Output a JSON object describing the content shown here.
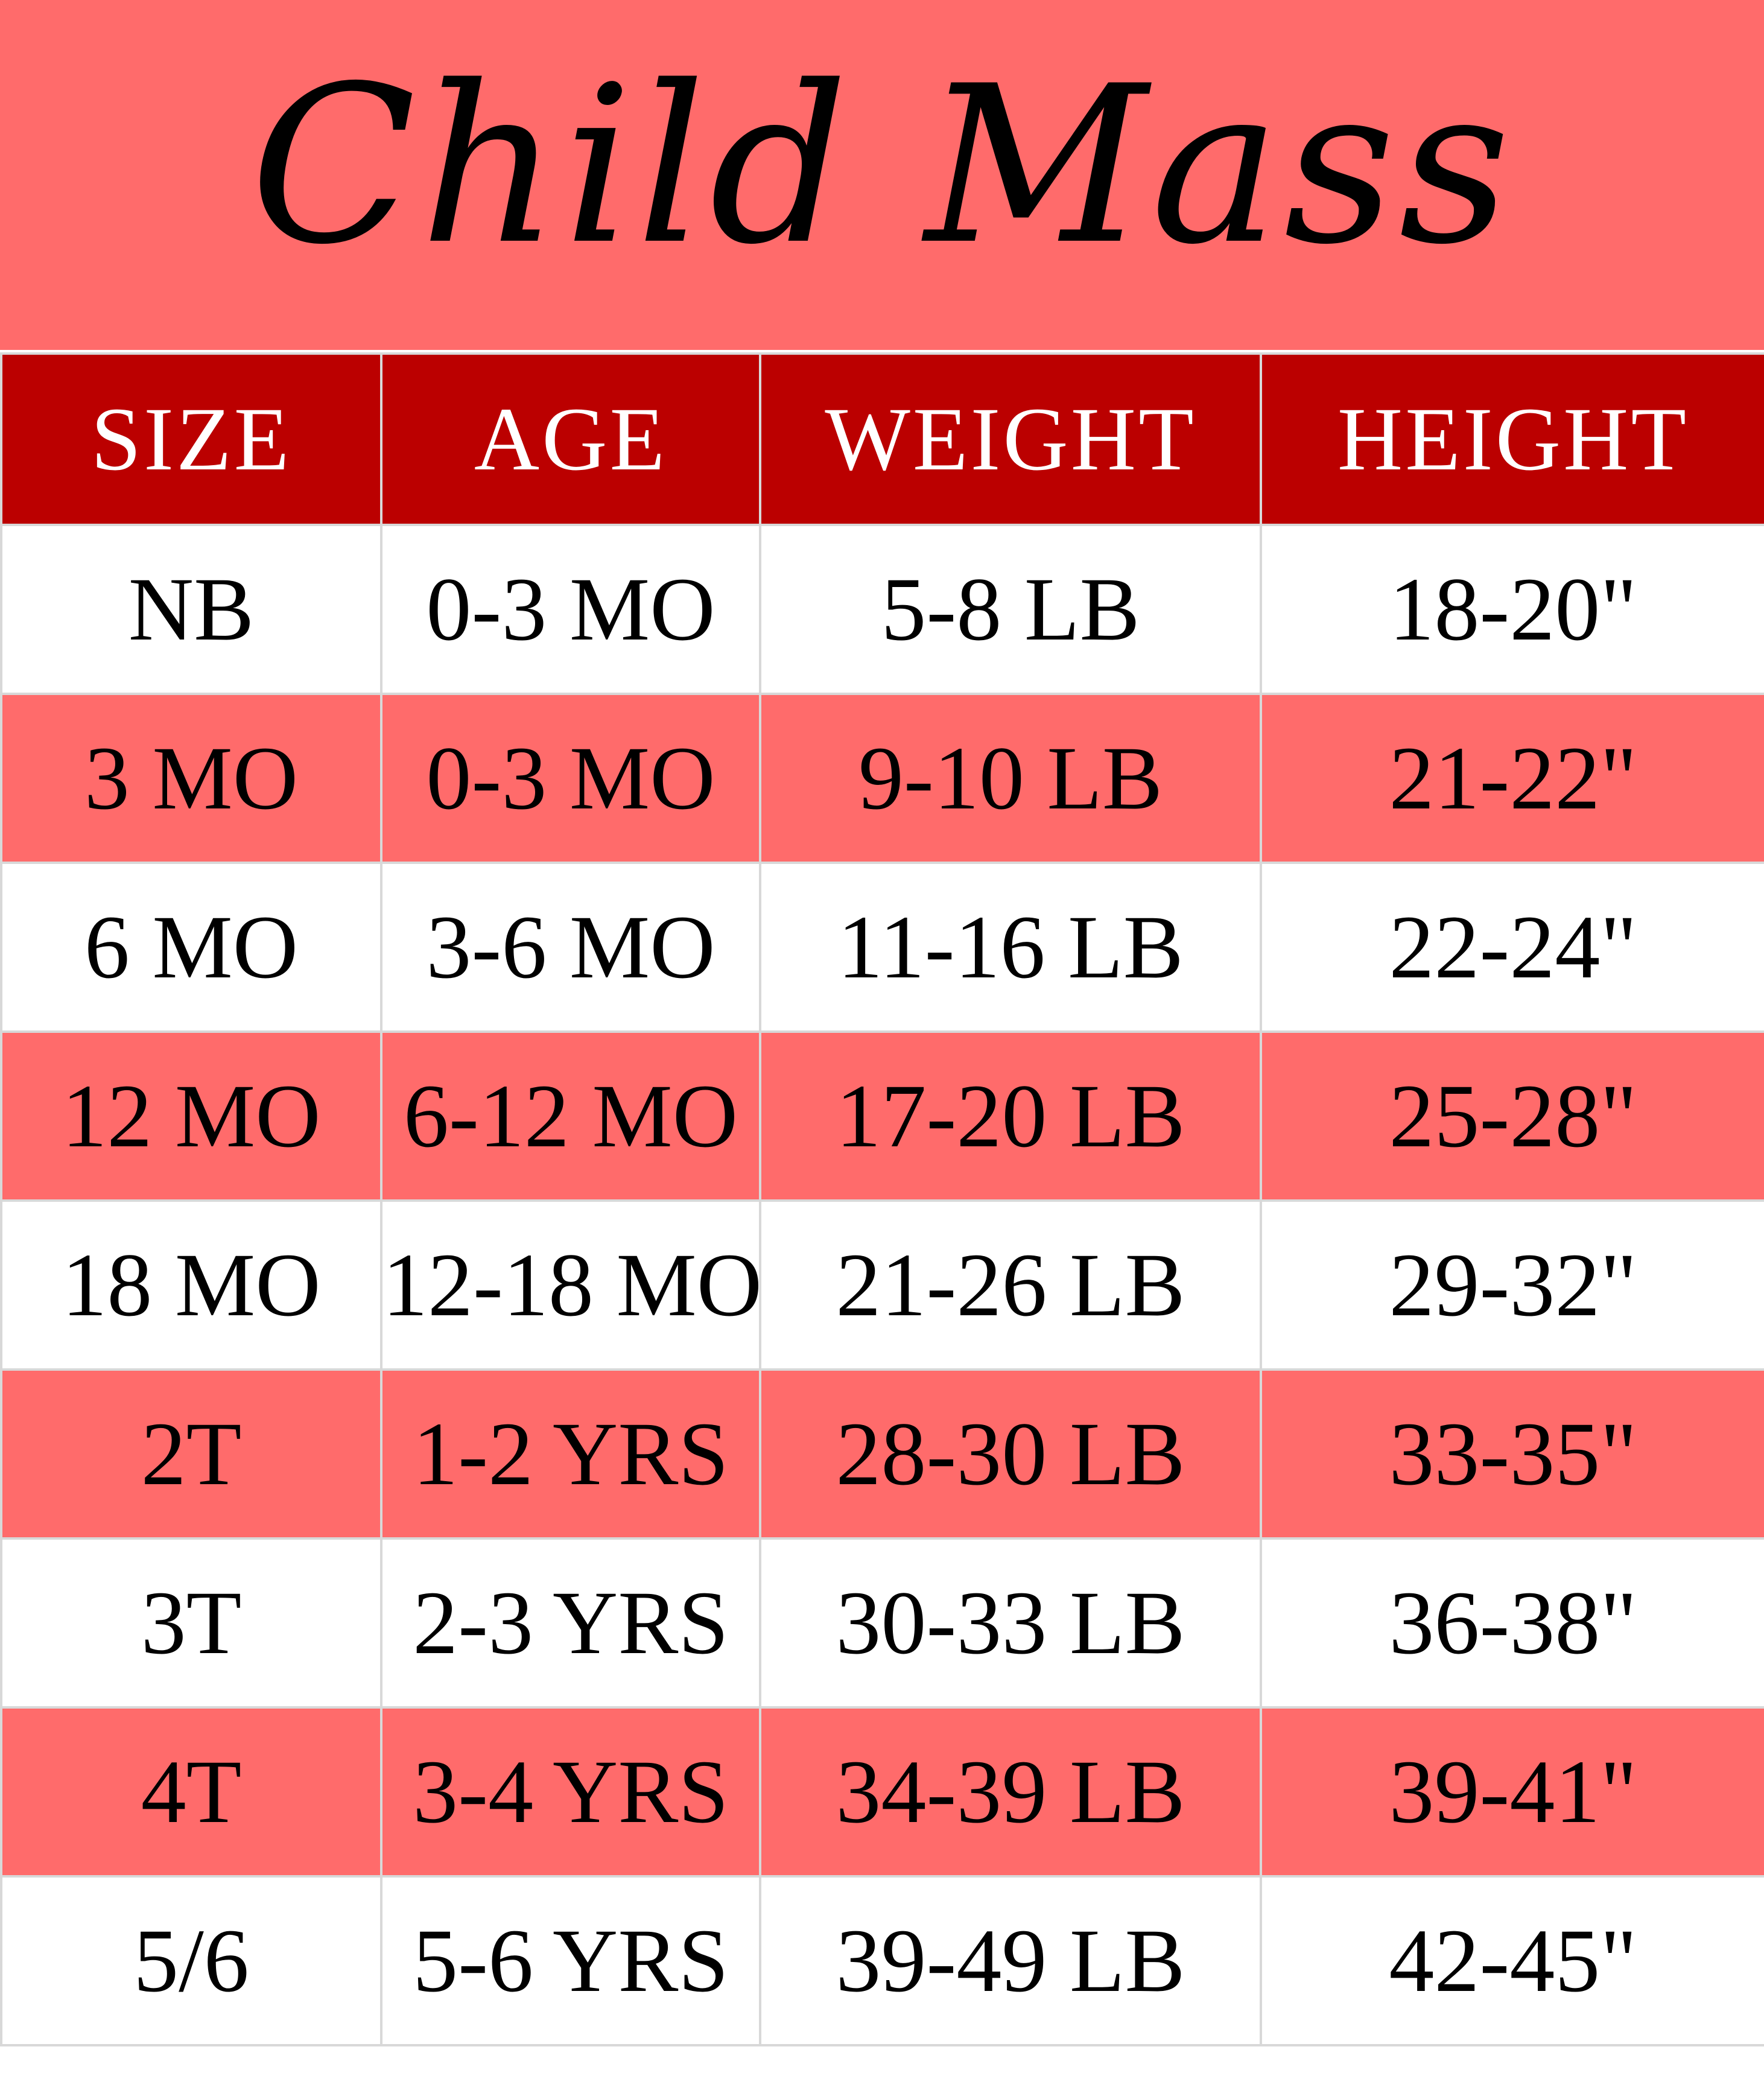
{
  "title": "Child Mass",
  "colors": {
    "banner": "#ff6b6b",
    "header": "#bb0000",
    "alt_row": "#ff6b6b",
    "row": "#ffffff"
  },
  "headers": [
    "SIZE",
    "AGE",
    "WEIGHT",
    "HEIGHT"
  ],
  "rows": [
    [
      "NB",
      "0-3 MO",
      "5-8 LB",
      "18-20\""
    ],
    [
      "3 MO",
      "0-3 MO",
      "9-10 LB",
      "21-22\""
    ],
    [
      "6 MO",
      "3-6 MO",
      "11-16 LB",
      "22-24\""
    ],
    [
      "12 MO",
      "6-12 MO",
      "17-20 LB",
      "25-28\""
    ],
    [
      "18 MO",
      "12-18 MO",
      "21-26 LB",
      "29-32\""
    ],
    [
      "2T",
      "1-2 YRS",
      "28-30 LB",
      "33-35\""
    ],
    [
      "3T",
      "2-3 YRS",
      "30-33 LB",
      "36-38\""
    ],
    [
      "4T",
      "3-4 YRS",
      "34-39 LB",
      "39-41\""
    ],
    [
      "5/6",
      "5-6 YRS",
      "39-49 LB",
      "42-45\""
    ]
  ]
}
